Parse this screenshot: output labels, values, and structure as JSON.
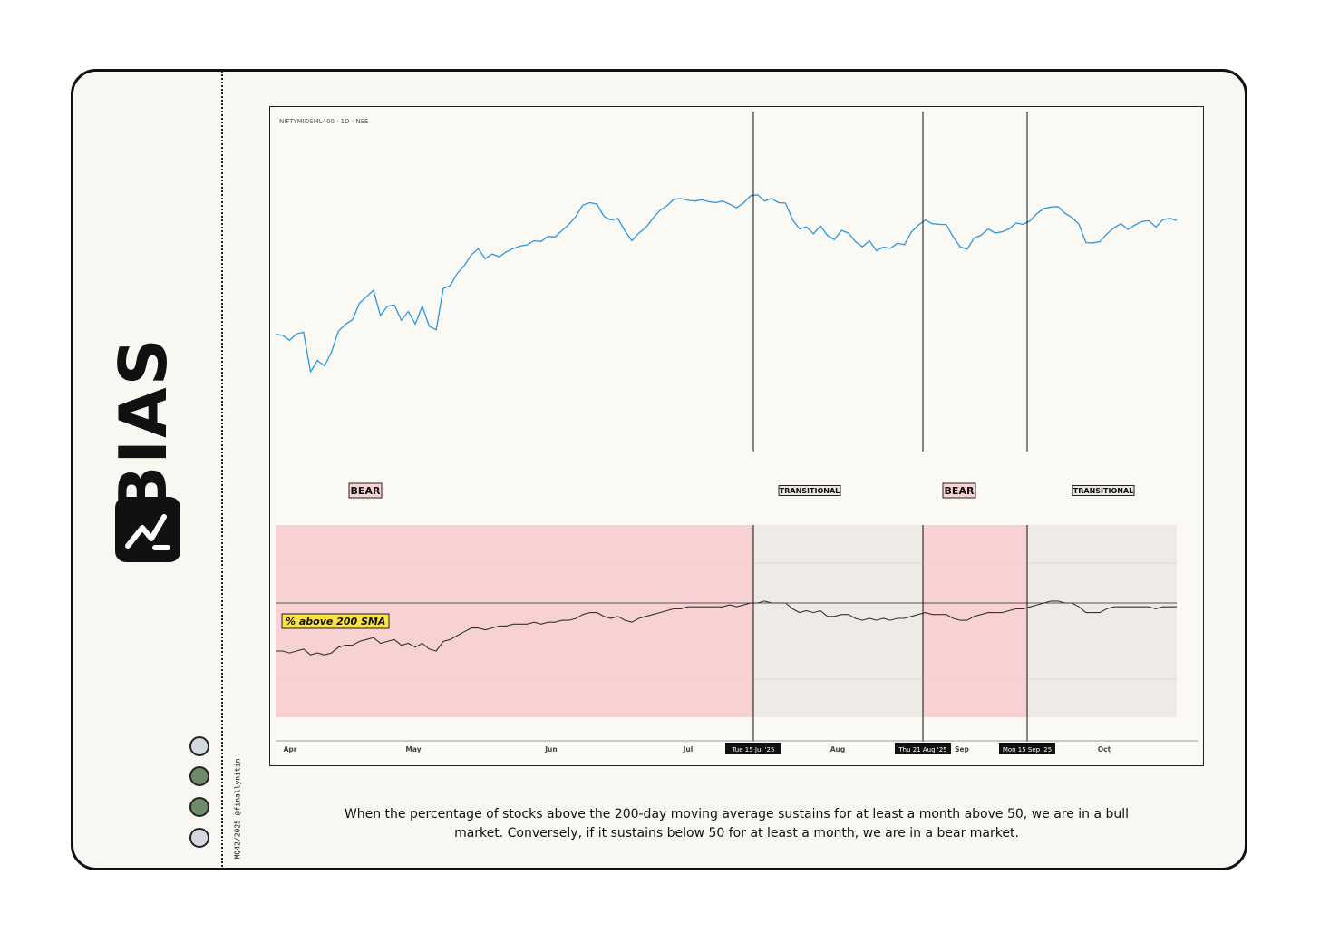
{
  "brand": {
    "name": "BIAS",
    "logo_icon": "lightning-bolt-icon",
    "credit": "MQ42/2025 @finallynitin",
    "dots": [
      "#d4d8e1",
      "#6e8a69",
      "#6e8a69",
      "#d4d8e1"
    ]
  },
  "chart_data": {
    "type": "line",
    "symbol_label": "NIFTYMIDSML400 · 1D · NSE",
    "x_ticks": [
      "Apr",
      "May",
      "Jun",
      "Jul",
      "Aug",
      "Sep",
      "Oct"
    ],
    "date_markers": [
      "Tue 15 Jul '25",
      "Thu 21 Aug '25",
      "Mon 15 Sep '25"
    ],
    "regimes": [
      {
        "label": "BEAR",
        "type": "bear",
        "start": "Apr",
        "end": "Tue 15 Jul '25",
        "color": "#f8d1d3"
      },
      {
        "label": "TRANSITIONAL",
        "type": "transitional",
        "start": "Tue 15 Jul '25",
        "end": "Thu 21 Aug '25",
        "color": "#eeebe6"
      },
      {
        "label": "BEAR",
        "type": "bear",
        "start": "Thu 21 Aug '25",
        "end": "Mon 15 Sep '25",
        "color": "#f8d1d3"
      },
      {
        "label": "TRANSITIONAL",
        "type": "transitional",
        "start": "Mon 15 Sep '25",
        "end": "Oct",
        "color": "#eeebe6"
      }
    ],
    "series": [
      {
        "key": "price",
        "color": "#2d96df",
        "values": [
          38.9,
          38.5,
          36.3,
          39.1,
          39.9,
          22.7,
          27.6,
          25.3,
          31.2,
          40.3,
          43.3,
          45.2,
          52.4,
          55.2,
          58.0,
          47.1,
          51.1,
          51.6,
          45.0,
          48.8,
          43.4,
          51.1,
          42.4,
          40.9,
          58.8,
          60.0,
          65.2,
          68.6,
          73.3,
          76.0,
          71.6,
          73.7,
          72.5,
          74.6,
          76.0,
          77.1,
          77.6,
          79.4,
          79.1,
          81.3,
          81.0,
          83.8,
          86.5,
          90.0,
          94.9,
          95.9,
          95.3,
          89.9,
          88.4,
          89.0,
          83.7,
          79.4,
          82.7,
          85.1,
          89.1,
          92.5,
          94.5,
          97.3,
          97.7,
          96.9,
          96.6,
          97.1,
          96.3,
          95.9,
          96.6,
          95.2,
          93.7,
          95.8,
          98.9,
          99.3,
          96.6,
          97.7,
          95.9,
          95.7,
          88.5,
          84.5,
          85.4,
          82.4,
          85.9,
          81.7,
          79.9,
          83.9,
          82.8,
          79.0,
          76.8,
          79.4,
          75.1,
          76.7,
          76.1,
          78.3,
          77.7,
          83.1,
          86.1,
          88.4,
          86.8,
          86.5,
          86.4,
          81.1,
          76.8,
          75.7,
          80.6,
          81.8,
          84.5,
          82.8,
          83.3,
          84.5,
          87.1,
          86.5,
          88.0,
          91.2,
          93.4,
          94.0,
          94.2,
          91.3,
          89.5,
          86.6,
          78.6,
          78.5,
          79.0,
          82.3,
          85.0,
          86.8,
          84.3,
          86.2,
          87.7,
          88.1,
          85.3,
          88.5,
          89.1,
          88.2
        ]
      },
      {
        "key": "breadth",
        "name": "% above 200 SMA",
        "color": "#333333",
        "values": [
          25,
          25,
          24,
          25,
          26,
          23,
          24,
          23,
          24,
          27,
          28,
          28,
          30,
          31,
          32,
          29,
          30,
          31,
          28,
          29,
          27,
          29,
          26,
          25,
          30,
          31,
          33,
          35,
          37,
          37,
          36,
          37,
          38,
          38,
          39,
          39,
          39,
          40,
          39,
          40,
          40,
          41,
          41,
          42,
          44,
          45,
          45,
          43,
          42,
          43,
          41,
          40,
          42,
          43,
          44,
          45,
          46,
          47,
          47,
          48,
          48,
          48,
          48,
          48,
          48,
          49,
          48,
          49,
          50,
          50,
          51,
          50,
          50,
          50,
          47,
          45,
          46,
          45,
          46,
          43,
          43,
          44,
          44,
          42,
          41,
          42,
          41,
          42,
          41,
          42,
          42,
          43,
          44,
          45,
          44,
          44,
          44,
          42,
          41,
          41,
          43,
          44,
          45,
          45,
          45,
          46,
          47,
          47,
          48,
          49,
          50,
          51,
          51,
          50,
          50,
          48,
          45,
          45,
          45,
          47,
          48,
          48,
          48,
          48,
          48,
          48,
          47,
          48,
          48,
          48
        ]
      }
    ],
    "threshold": 50,
    "breadth_ylim": [
      0,
      100
    ]
  },
  "caption": {
    "line1": "When the percentage of stocks above the 200-day moving average sustains for at least a month above 50, we are in a bull",
    "line2": "market. Conversely, if it sustains below 50 for at least a month, we are in a bear market."
  }
}
